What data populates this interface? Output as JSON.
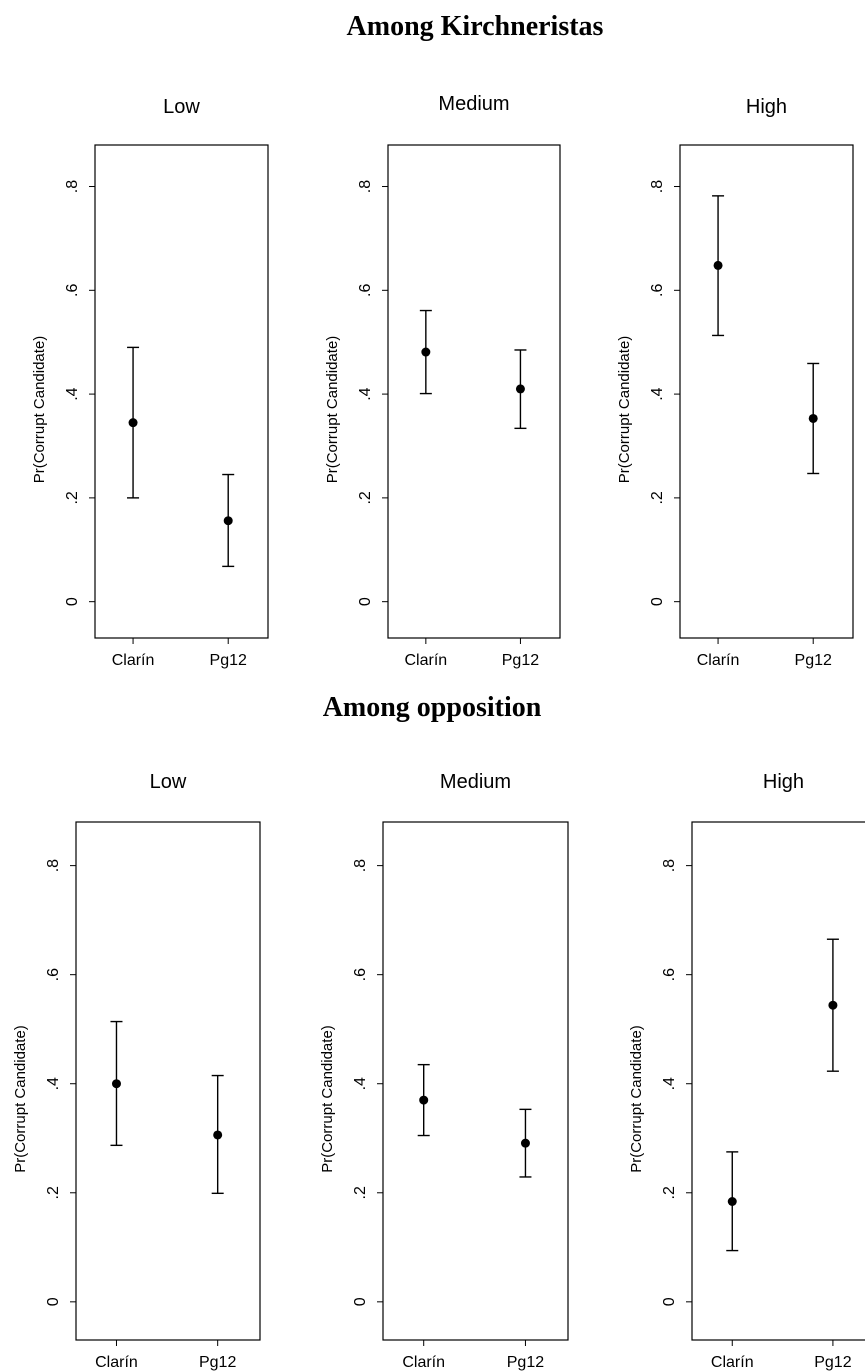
{
  "sections": [
    {
      "title": "Among Kirchneristas"
    },
    {
      "title": "Among opposition"
    }
  ],
  "chart_data": [
    {
      "type": "scatter",
      "group": "Among Kirchneristas",
      "title": "Low",
      "ylabel": "Pr(Corrupt Candidate)",
      "categories": [
        "Clarín",
        "Pg12"
      ],
      "values": [
        0.345,
        0.156
      ],
      "ci": [
        [
          0.2,
          0.49
        ],
        [
          0.068,
          0.245
        ]
      ],
      "ylim": [
        -0.07,
        0.88
      ],
      "yticks": [
        0,
        0.2,
        0.4,
        0.6,
        0.8
      ],
      "ytick_labels": [
        "0",
        ".2",
        ".4",
        ".6",
        ".8"
      ],
      "grid": false
    },
    {
      "type": "scatter",
      "group": "Among Kirchneristas",
      "title": "Medium",
      "ylabel": "Pr(Corrupt Candidate)",
      "categories": [
        "Clarín",
        "Pg12"
      ],
      "values": [
        0.481,
        0.41
      ],
      "ci": [
        [
          0.401,
          0.561
        ],
        [
          0.334,
          0.485
        ]
      ],
      "ylim": [
        -0.07,
        0.88
      ],
      "yticks": [
        0,
        0.2,
        0.4,
        0.6,
        0.8
      ],
      "ytick_labels": [
        "0",
        ".2",
        ".4",
        ".6",
        ".8"
      ],
      "grid": false
    },
    {
      "type": "scatter",
      "group": "Among Kirchneristas",
      "title": "High",
      "ylabel": "Pr(Corrupt Candidate)",
      "categories": [
        "Clarín",
        "Pg12"
      ],
      "values": [
        0.648,
        0.353
      ],
      "ci": [
        [
          0.513,
          0.782
        ],
        [
          0.247,
          0.459
        ]
      ],
      "ylim": [
        -0.07,
        0.88
      ],
      "yticks": [
        0,
        0.2,
        0.4,
        0.6,
        0.8
      ],
      "ytick_labels": [
        "0",
        ".2",
        ".4",
        ".6",
        ".8"
      ],
      "grid": false
    },
    {
      "type": "scatter",
      "group": "Among opposition",
      "title": "Low",
      "ylabel": "Pr(Corrupt Candidate)",
      "categories": [
        "Clarín",
        "Pg12"
      ],
      "values": [
        0.4,
        0.306
      ],
      "ci": [
        [
          0.287,
          0.514
        ],
        [
          0.199,
          0.415
        ]
      ],
      "ylim": [
        -0.07,
        0.88
      ],
      "yticks": [
        0,
        0.2,
        0.4,
        0.6,
        0.8
      ],
      "ytick_labels": [
        "0",
        ".2",
        ".4",
        ".6",
        ".8"
      ],
      "grid": false
    },
    {
      "type": "scatter",
      "group": "Among opposition",
      "title": "Medium",
      "ylabel": "Pr(Corrupt Candidate)",
      "categories": [
        "Clarín",
        "Pg12"
      ],
      "values": [
        0.37,
        0.291
      ],
      "ci": [
        [
          0.305,
          0.435
        ],
        [
          0.229,
          0.353
        ]
      ],
      "ylim": [
        -0.07,
        0.88
      ],
      "yticks": [
        0,
        0.2,
        0.4,
        0.6,
        0.8
      ],
      "ytick_labels": [
        "0",
        ".2",
        ".4",
        ".6",
        ".8"
      ],
      "grid": false
    },
    {
      "type": "scatter",
      "group": "Among opposition",
      "title": "High",
      "ylabel": "Pr(Corrupt Candidate)",
      "categories": [
        "Clarín",
        "Pg12"
      ],
      "values": [
        0.184,
        0.544
      ],
      "ci": [
        [
          0.094,
          0.275
        ],
        [
          0.423,
          0.665
        ]
      ],
      "ylim": [
        -0.07,
        0.88
      ],
      "yticks": [
        0,
        0.2,
        0.4,
        0.6,
        0.8
      ],
      "ytick_labels": [
        "0",
        ".2",
        ".4",
        ".6",
        ".8"
      ],
      "grid": false
    }
  ]
}
